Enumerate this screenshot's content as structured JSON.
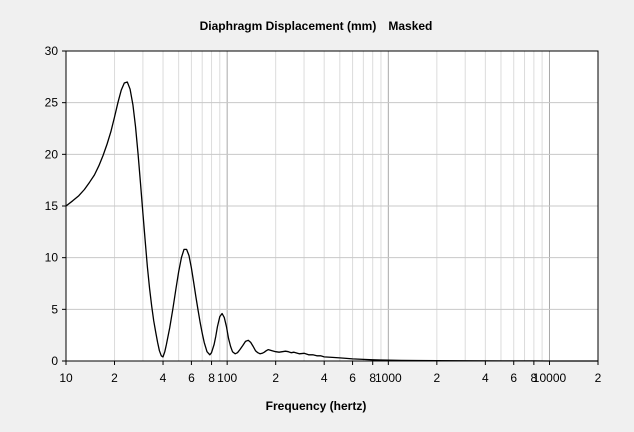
{
  "chart_data": {
    "type": "line",
    "title": "Diaphragm Displacement (mm)",
    "status": "Masked",
    "xlabel": "Frequency (hertz)",
    "ylabel": "",
    "x_scale": "log",
    "xlim": [
      10,
      20000
    ],
    "ylim": [
      0,
      30
    ],
    "grid": true,
    "legend": "none",
    "line_color": "#000000",
    "y_ticks": [
      "0",
      "5",
      "10",
      "15",
      "20",
      "25",
      "30"
    ],
    "x_ticks": [
      {
        "value": 10,
        "label": "10"
      },
      {
        "value": 20,
        "label": "2"
      },
      {
        "value": 40,
        "label": "4"
      },
      {
        "value": 60,
        "label": "6"
      },
      {
        "value": 80,
        "label": "8"
      },
      {
        "value": 100,
        "label": "100"
      },
      {
        "value": 200,
        "label": "2"
      },
      {
        "value": 400,
        "label": "4"
      },
      {
        "value": 600,
        "label": "6"
      },
      {
        "value": 800,
        "label": "8"
      },
      {
        "value": 1000,
        "label": "1000"
      },
      {
        "value": 2000,
        "label": "2"
      },
      {
        "value": 4000,
        "label": "4"
      },
      {
        "value": 6000,
        "label": "6"
      },
      {
        "value": 8000,
        "label": "8"
      },
      {
        "value": 10000,
        "label": "10000"
      },
      {
        "value": 20000,
        "label": "2"
      }
    ],
    "series": [
      {
        "x": [
          10,
          11,
          12,
          13,
          14,
          15,
          16,
          17,
          18,
          19,
          20,
          21,
          22,
          23,
          24,
          25,
          26,
          27,
          28,
          29,
          30,
          31,
          32,
          33,
          34,
          35,
          36,
          37,
          38,
          39,
          40,
          41,
          42,
          44,
          46,
          48,
          50,
          52,
          54,
          56,
          58,
          60,
          62,
          64,
          66,
          68,
          70,
          72,
          75,
          78,
          80,
          83,
          85,
          87,
          90,
          93,
          96,
          99,
          102,
          105,
          108,
          112,
          116,
          120,
          125,
          130,
          135,
          140,
          145,
          150,
          155,
          160,
          165,
          170,
          175,
          180,
          190,
          200,
          210,
          220,
          230,
          240,
          250,
          260,
          280,
          300,
          320,
          340,
          360,
          380,
          400,
          450,
          500,
          550,
          600,
          700,
          800,
          900,
          1000,
          1200,
          1500,
          2000,
          3000,
          5000,
          8000,
          10000,
          15000,
          20000
        ],
        "y": [
          15.0,
          15.5,
          16.0,
          16.6,
          17.3,
          18.0,
          18.9,
          19.9,
          21.0,
          22.2,
          23.6,
          25.0,
          26.2,
          26.9,
          27.0,
          26.3,
          24.8,
          22.7,
          20.0,
          17.2,
          14.3,
          11.6,
          9.1,
          7.0,
          5.3,
          3.9,
          2.8,
          1.8,
          1.0,
          0.5,
          0.4,
          0.9,
          1.6,
          3.2,
          5.0,
          6.9,
          8.6,
          10.0,
          10.8,
          10.8,
          10.2,
          9.0,
          7.6,
          6.2,
          4.9,
          3.7,
          2.7,
          1.8,
          0.9,
          0.6,
          0.8,
          1.6,
          2.4,
          3.3,
          4.3,
          4.6,
          4.2,
          3.3,
          2.2,
          1.4,
          0.9,
          0.7,
          0.8,
          1.1,
          1.5,
          1.9,
          2.0,
          1.8,
          1.4,
          1.0,
          0.8,
          0.7,
          0.75,
          0.85,
          1.0,
          1.1,
          1.0,
          0.9,
          0.85,
          0.9,
          0.95,
          0.9,
          0.8,
          0.85,
          0.7,
          0.75,
          0.6,
          0.6,
          0.5,
          0.5,
          0.4,
          0.35,
          0.3,
          0.25,
          0.2,
          0.15,
          0.12,
          0.1,
          0.08,
          0.06,
          0.05,
          0.04,
          0.02,
          0.01,
          0.01,
          0.0,
          0.0,
          0.0
        ]
      }
    ]
  }
}
